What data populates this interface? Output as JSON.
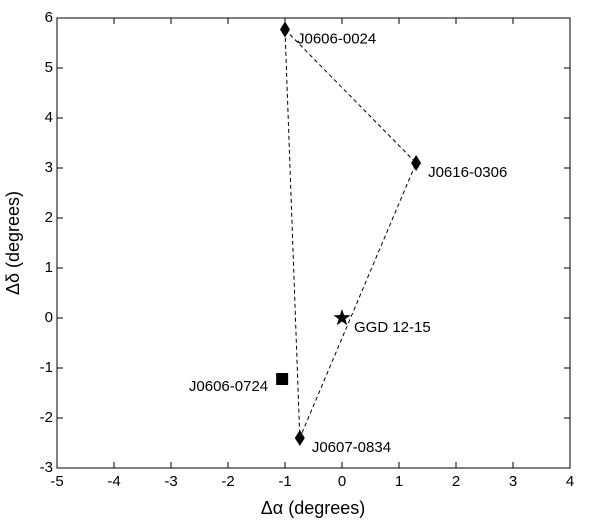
{
  "chart_data": {
    "type": "scatter",
    "xlabel": "Δα (degrees)",
    "ylabel": "Δδ (degrees)",
    "xlim": [
      -5,
      4
    ],
    "ylim": [
      -3,
      6
    ],
    "xticks": [
      -5,
      -4,
      -3,
      -2,
      -1,
      0,
      1,
      2,
      3,
      4
    ],
    "yticks": [
      -3,
      -2,
      -1,
      0,
      1,
      2,
      3,
      4,
      5,
      6
    ],
    "series": [
      {
        "name": "J0606-0024",
        "color": "#000000",
        "marker": "diamond",
        "x": [
          -1.0
        ],
        "values": [
          5.77
        ]
      },
      {
        "name": "J0616-0306",
        "color": "#000000",
        "marker": "diamond",
        "x": [
          1.3
        ],
        "values": [
          3.1
        ]
      },
      {
        "name": "J0607-0834",
        "color": "#000000",
        "marker": "diamond",
        "x": [
          -0.74
        ],
        "values": [
          -2.4
        ]
      },
      {
        "name": "J0606-0724",
        "color": "#000000",
        "marker": "square",
        "x": [
          -1.05
        ],
        "values": [
          -1.22
        ]
      },
      {
        "name": "GGD 12-15",
        "color": "#000000",
        "marker": "star",
        "x": [
          0
        ],
        "values": [
          0
        ]
      }
    ]
  }
}
